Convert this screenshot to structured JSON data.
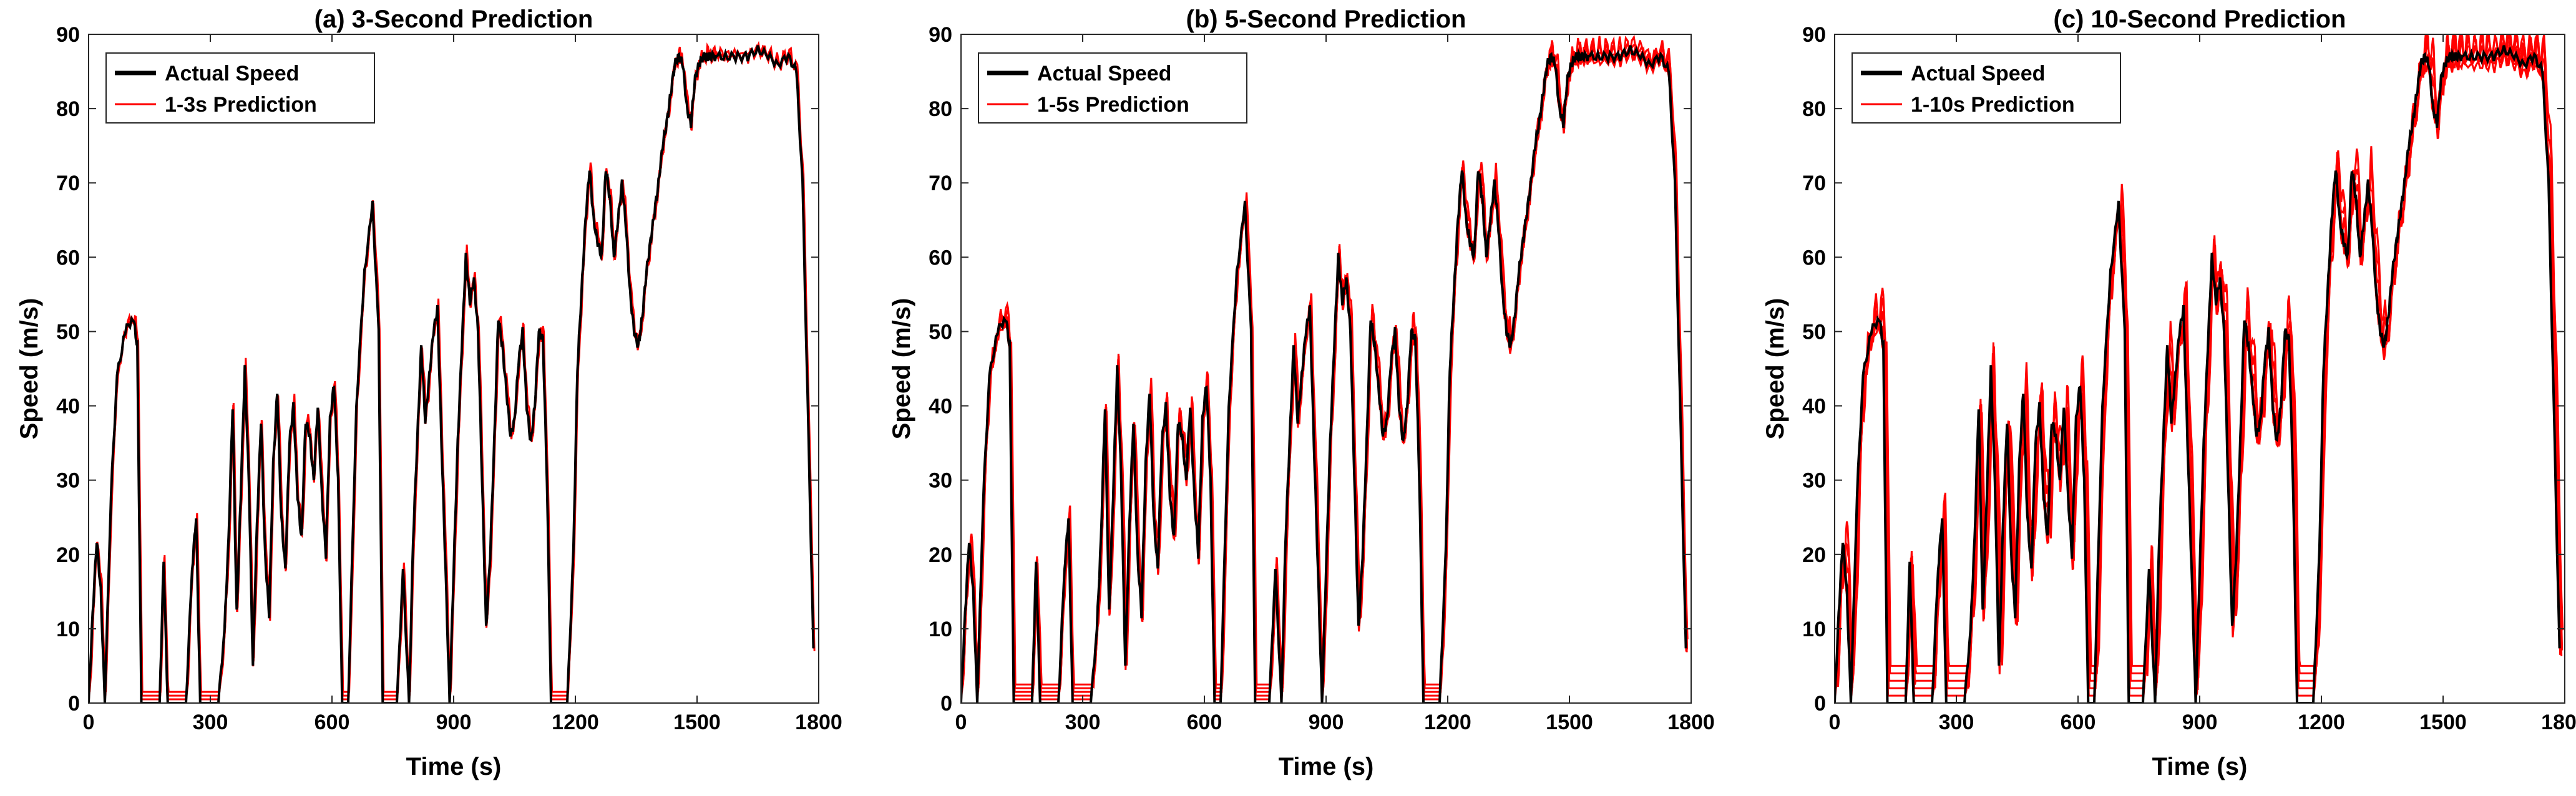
{
  "chart_data": [
    {
      "type": "line",
      "title": "(a) 3-Second Prediction",
      "xlabel": "Time (s)",
      "ylabel": "Speed (m/s)",
      "xlim": [
        0,
        1800
      ],
      "ylim": [
        0,
        90
      ],
      "xticks": [
        0,
        300,
        600,
        900,
        1200,
        1500,
        1800
      ],
      "yticks": [
        0,
        10,
        20,
        30,
        40,
        50,
        60,
        70,
        80,
        90
      ],
      "legend_position": "top-left",
      "series": [
        {
          "name": "Actual Speed",
          "color": "#000000"
        },
        {
          "name": "1-3s Prediction",
          "color": "#ff0000"
        }
      ],
      "prediction_spread": 3
    },
    {
      "type": "line",
      "title": "(b) 5-Second Prediction",
      "xlabel": "Time (s)",
      "ylabel": "Speed (m/s)",
      "xlim": [
        0,
        1800
      ],
      "ylim": [
        0,
        90
      ],
      "xticks": [
        0,
        300,
        600,
        900,
        1200,
        1500,
        1800
      ],
      "yticks": [
        0,
        10,
        20,
        30,
        40,
        50,
        60,
        70,
        80,
        90
      ],
      "legend_position": "top-left",
      "series": [
        {
          "name": "Actual Speed",
          "color": "#000000"
        },
        {
          "name": "1-5s Prediction",
          "color": "#ff0000"
        }
      ],
      "prediction_spread": 5
    },
    {
      "type": "line",
      "title": "(c) 10-Second Prediction",
      "xlabel": "Time (s)",
      "ylabel": "Speed (m/s)",
      "xlim": [
        0,
        1800
      ],
      "ylim": [
        0,
        90
      ],
      "xticks": [
        0,
        300,
        600,
        900,
        1200,
        1500,
        1800
      ],
      "yticks": [
        0,
        10,
        20,
        30,
        40,
        50,
        60,
        70,
        80,
        90
      ],
      "legend_position": "top-left",
      "series": [
        {
          "name": "Actual Speed",
          "color": "#000000"
        },
        {
          "name": "1-10s Prediction",
          "color": "#ff0000"
        }
      ],
      "prediction_spread": 10
    }
  ],
  "actual_speed_profile": {
    "time": [
      0,
      10,
      20,
      30,
      40,
      55,
      70,
      90,
      110,
      120,
      130,
      140,
      160,
      175,
      185,
      195,
      210,
      240,
      255,
      265,
      275,
      290,
      320,
      335,
      345,
      355,
      365,
      375,
      385,
      395,
      405,
      415,
      425,
      435,
      445,
      455,
      465,
      475,
      485,
      495,
      505,
      515,
      525,
      535,
      545,
      555,
      565,
      575,
      585,
      595,
      605,
      615,
      625,
      640,
      660,
      680,
      700,
      715,
      725,
      735,
      760,
      775,
      790,
      800,
      810,
      820,
      830,
      840,
      850,
      860,
      870,
      880,
      890,
      900,
      910,
      920,
      930,
      940,
      950,
      960,
      970,
      980,
      990,
      1000,
      1010,
      1020,
      1030,
      1040,
      1050,
      1060,
      1070,
      1080,
      1090,
      1100,
      1110,
      1120,
      1130,
      1140,
      1160,
      1180,
      1195,
      1205,
      1215,
      1225,
      1235,
      1245,
      1255,
      1265,
      1275,
      1285,
      1295,
      1305,
      1315,
      1325,
      1335,
      1345,
      1355,
      1365,
      1375,
      1385,
      1395,
      1405,
      1415,
      1425,
      1435,
      1445,
      1455,
      1465,
      1475,
      1485,
      1495,
      1505,
      1515,
      1525,
      1535,
      1550,
      1575,
      1600,
      1625,
      1650,
      1675,
      1700,
      1725,
      1745,
      1760,
      1775,
      1790,
      1800
    ],
    "speed": [
      0,
      12,
      22,
      15,
      0,
      28,
      44,
      50,
      52,
      48,
      0,
      0,
      0,
      0,
      19,
      0,
      0,
      0,
      18,
      25,
      0,
      0,
      0,
      10,
      22,
      40,
      12,
      28,
      45,
      30,
      5,
      24,
      38,
      20,
      12,
      32,
      42,
      25,
      18,
      35,
      40,
      28,
      22,
      38,
      36,
      30,
      40,
      28,
      20,
      38,
      43,
      30,
      0,
      0,
      40,
      58,
      67,
      50,
      0,
      0,
      0,
      18,
      0,
      22,
      35,
      48,
      38,
      44,
      50,
      53,
      35,
      18,
      0,
      18,
      35,
      48,
      60,
      54,
      57,
      50,
      30,
      10,
      20,
      35,
      52,
      48,
      42,
      36,
      38,
      46,
      50,
      40,
      35,
      40,
      50,
      49,
      30,
      0,
      0,
      0,
      20,
      45,
      55,
      65,
      72,
      65,
      62,
      60,
      72,
      68,
      60,
      65,
      70,
      64,
      55,
      50,
      48,
      52,
      58,
      62,
      66,
      70,
      75,
      78,
      82,
      86,
      87,
      86,
      80,
      78,
      84,
      86,
      87,
      87,
      87,
      87,
      87,
      87,
      87,
      88,
      87,
      86,
      87,
      85,
      70,
      35,
      0
    ]
  }
}
